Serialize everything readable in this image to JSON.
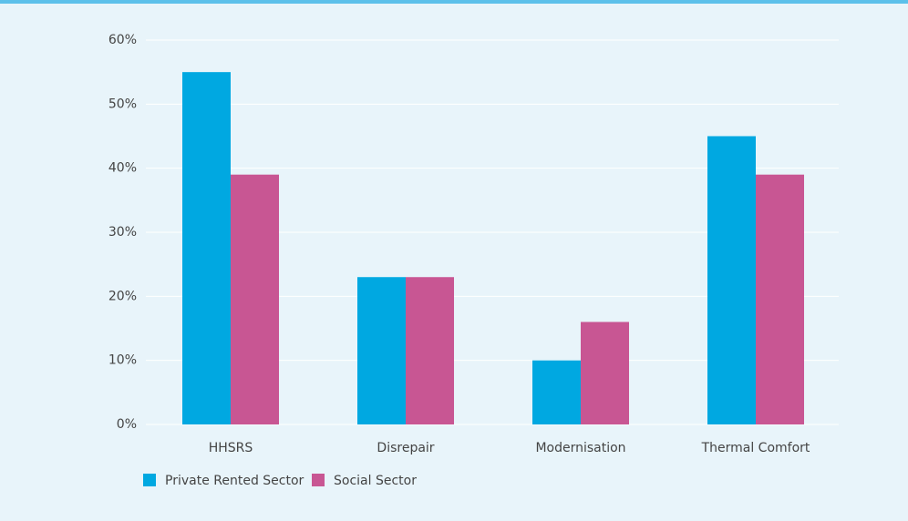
{
  "chart_data": {
    "type": "bar",
    "categories": [
      "HHSRS",
      "Disrepair",
      "Modernisation",
      "Thermal Comfort"
    ],
    "series": [
      {
        "name": "Private Rented Sector",
        "color": "#00a8e1",
        "values": [
          55,
          23,
          10,
          45
        ]
      },
      {
        "name": "Social Sector",
        "color": "#c85693",
        "values": [
          39,
          23,
          16,
          39
        ]
      }
    ],
    "ylim": [
      0,
      60
    ],
    "yticks": [
      {
        "value": 0,
        "label": "0%"
      },
      {
        "value": 10,
        "label": "10%"
      },
      {
        "value": 20,
        "label": "20%"
      },
      {
        "value": 30,
        "label": "30%"
      },
      {
        "value": 40,
        "label": "40%"
      },
      {
        "value": 50,
        "label": "50%"
      },
      {
        "value": 60,
        "label": "60%"
      }
    ],
    "grid": true,
    "legend": "bottom-left"
  }
}
